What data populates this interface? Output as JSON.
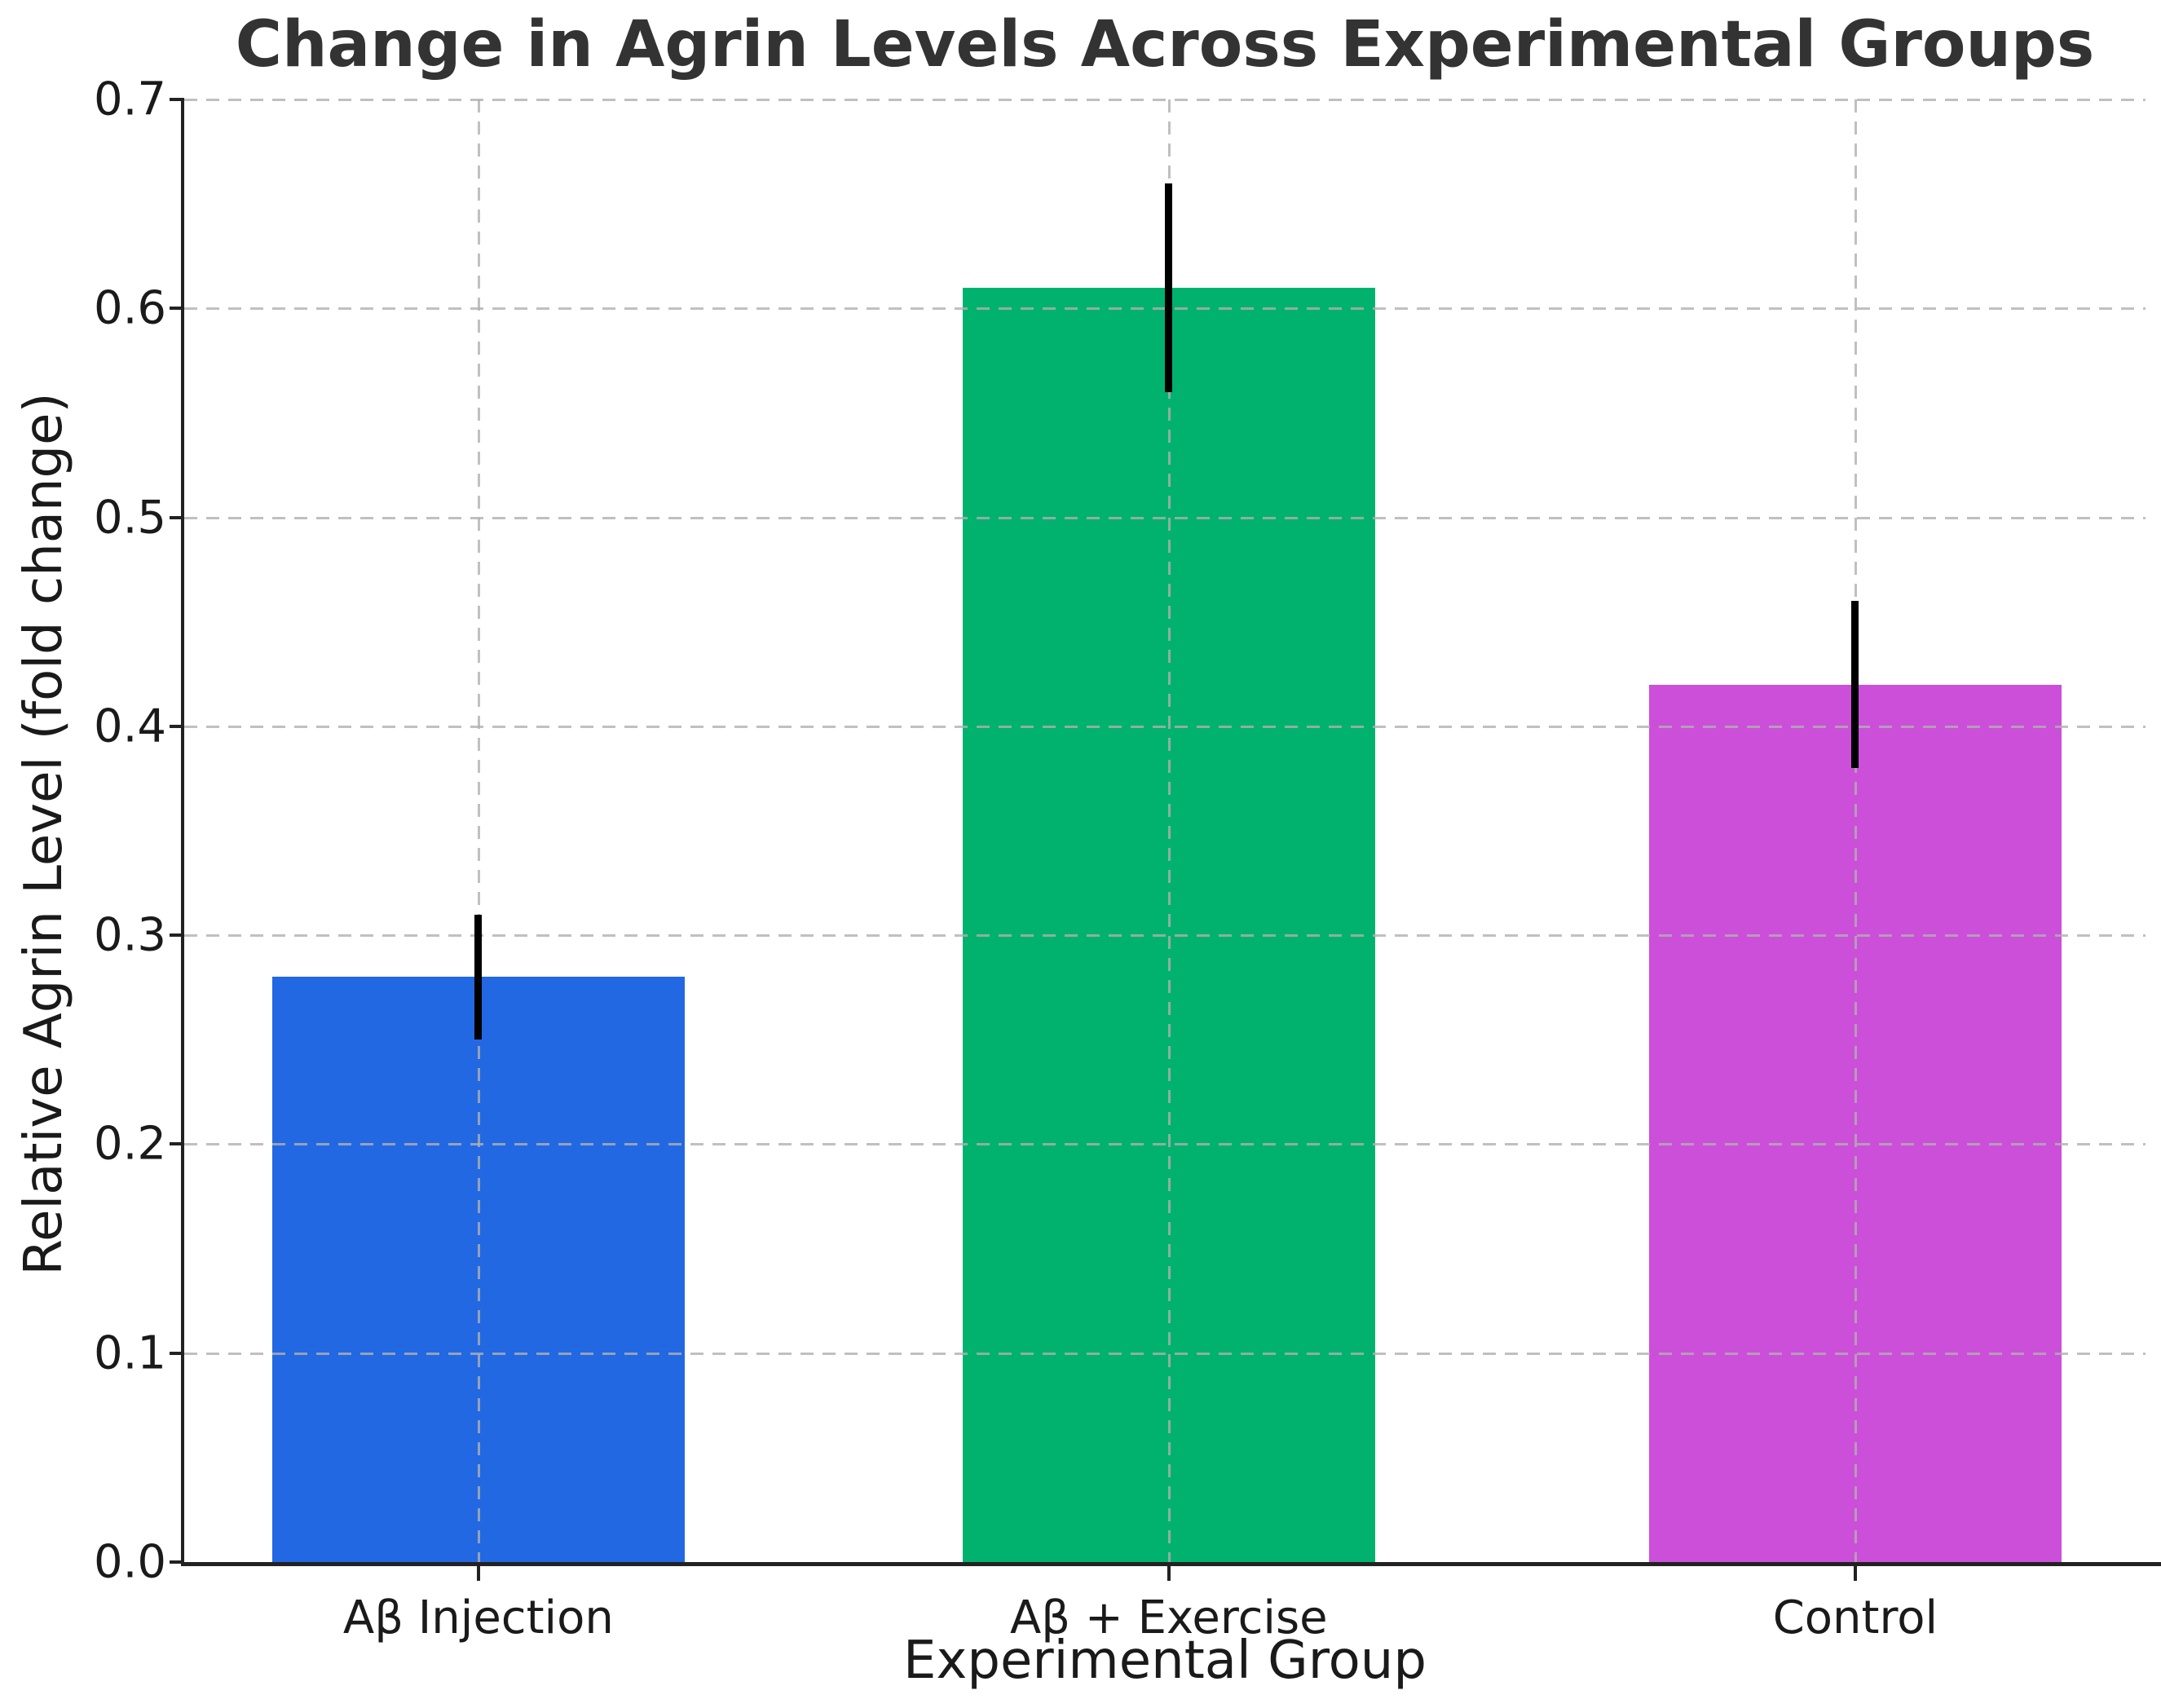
{
  "chart_data": {
    "type": "bar",
    "title": "Change in Agrin Levels Across Experimental Groups",
    "xlabel": "Experimental Group",
    "ylabel": "Relative Agrin Level (fold change)",
    "categories": [
      "Aβ Injection",
      "Aβ + Exercise",
      "Control"
    ],
    "values": [
      0.28,
      0.61,
      0.42
    ],
    "errors": [
      0.03,
      0.05,
      0.04
    ],
    "bar_colors": [
      "#2268E2",
      "#00B26E",
      "#CC4FD9"
    ],
    "error_bar_color": "#000000",
    "ylim": [
      0.0,
      0.7
    ],
    "yticks": [
      0.0,
      0.1,
      0.2,
      0.3,
      0.4,
      0.5,
      0.6,
      0.7
    ],
    "ytick_labels": [
      "0.0",
      "0.1",
      "0.2",
      "0.3",
      "0.4",
      "0.5",
      "0.6",
      "0.7"
    ],
    "grid": "dashed gridlines on both axes, drawn over bars",
    "legend": "none",
    "layout_hints": {
      "bar_center_fractions": [
        0.15,
        0.502,
        0.852
      ],
      "bar_width_fraction": 0.2103,
      "grid_over_bars": true,
      "spines": [
        "left",
        "bottom"
      ]
    }
  }
}
